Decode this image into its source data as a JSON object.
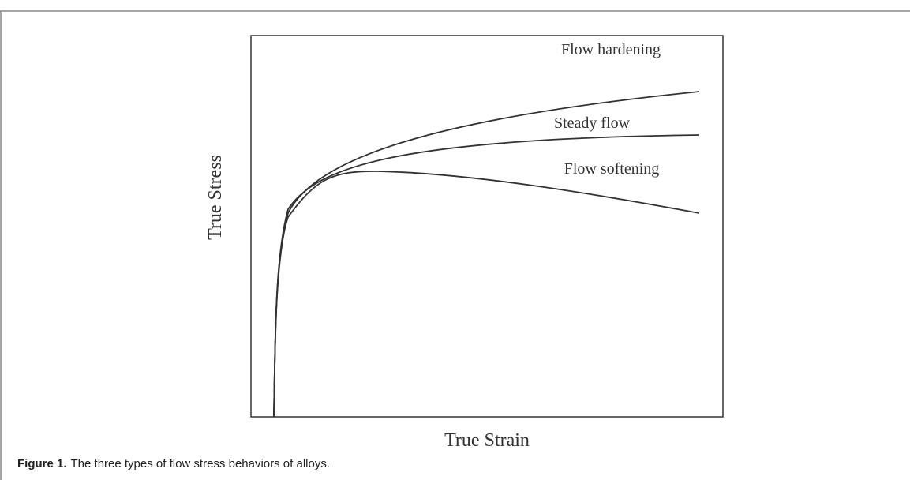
{
  "figure": {
    "x_label": "True Strain",
    "y_label": "True Stress",
    "curve_labels": [
      "Flow hardening",
      "Steady flow",
      "Flow softening"
    ],
    "caption": {
      "label": "Figure 1.",
      "text": "The three types of flow stress behaviors of alloys."
    }
  }
}
